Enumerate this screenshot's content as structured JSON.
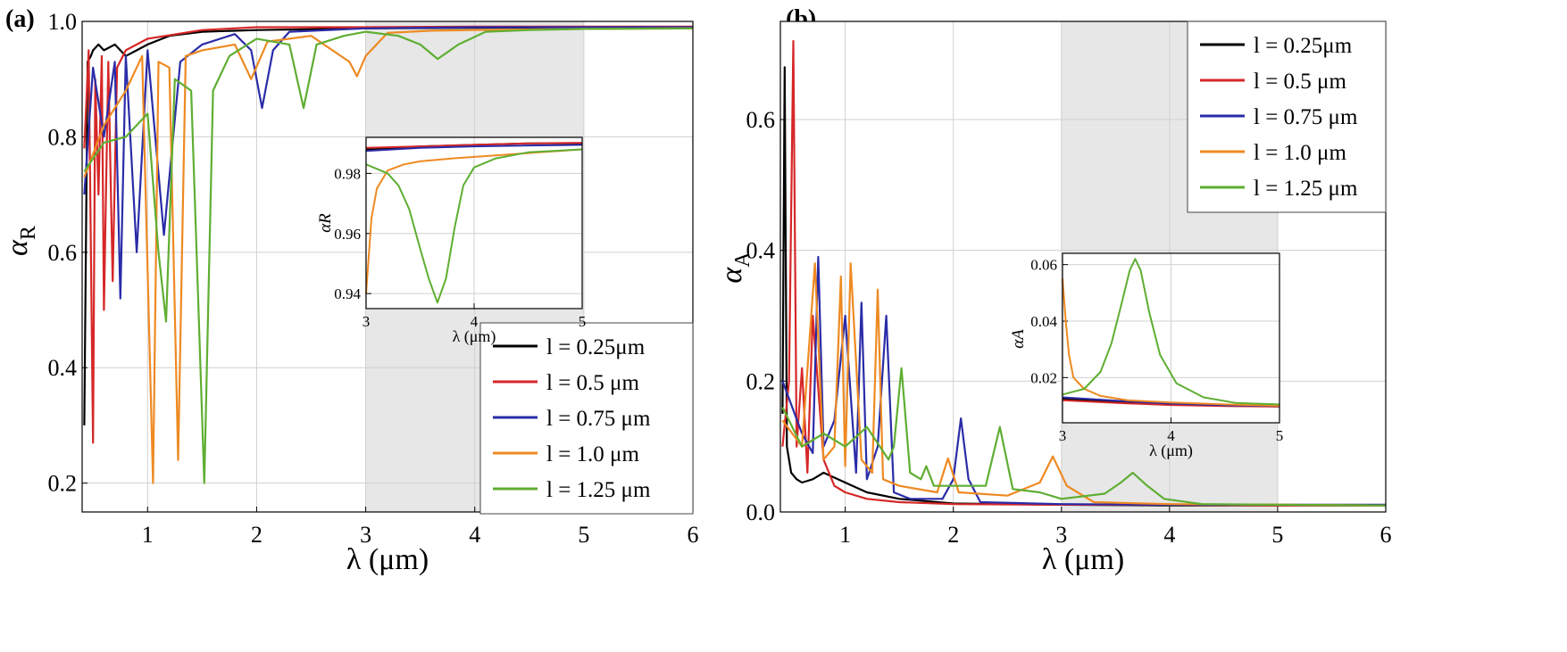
{
  "figure": {
    "panel_a_label": "(a)",
    "panel_b_label": "(b)"
  },
  "colors": {
    "l0_25": "#000000",
    "l0_5": "#d62728",
    "l0_75": "#2a2ca8",
    "l1_0": "#ee8a22",
    "l1_25": "#5fae32",
    "shade": "#e7e7e7"
  },
  "chart_data": [
    {
      "type": "line",
      "panel": "a",
      "xlabel": "λ (μm)",
      "ylabel": "αR",
      "ylabel_main": "α",
      "ylabel_sub": "R",
      "xlim": [
        0.4,
        6.0
      ],
      "ylim": [
        0.15,
        1.0
      ],
      "xticks": [
        "1",
        "2",
        "3",
        "4",
        "5",
        "6"
      ],
      "yticks": [
        "0.2",
        "0.4",
        "0.6",
        "0.8",
        "1.0"
      ],
      "grid": true,
      "shaded_x_range": [
        3,
        5
      ],
      "legend_position": "bottom-right",
      "legend": [
        "l = 0.25μm",
        "l = 0.5 μm",
        "l = 0.75 μm",
        "l = 1.0 μm",
        "l = 1.25 μm"
      ],
      "series": [
        {
          "name": "l = 0.25μm",
          "x": [
            0.42,
            0.45,
            0.48,
            0.5,
            0.55,
            0.6,
            0.7,
            0.8,
            0.9,
            1.0,
            1.2,
            1.5,
            2.0,
            3.0,
            4.0,
            5.0,
            6.0
          ],
          "y": [
            0.3,
            0.93,
            0.94,
            0.95,
            0.96,
            0.95,
            0.96,
            0.94,
            0.95,
            0.96,
            0.975,
            0.982,
            0.985,
            0.988,
            0.989,
            0.99,
            0.99
          ]
        },
        {
          "name": "l = 0.5 μm",
          "x": [
            0.42,
            0.46,
            0.5,
            0.52,
            0.55,
            0.58,
            0.6,
            0.64,
            0.68,
            0.72,
            0.8,
            1.0,
            1.5,
            2.0,
            3.0,
            4.0,
            5.0,
            6.0
          ],
          "y": [
            0.78,
            0.95,
            0.27,
            0.9,
            0.7,
            0.94,
            0.5,
            0.93,
            0.55,
            0.92,
            0.95,
            0.97,
            0.985,
            0.99,
            0.99,
            0.991,
            0.991,
            0.991
          ]
        },
        {
          "name": "l = 0.75 μm",
          "x": [
            0.42,
            0.5,
            0.6,
            0.7,
            0.75,
            0.8,
            0.9,
            1.0,
            1.15,
            1.3,
            1.5,
            1.8,
            1.95,
            2.05,
            2.15,
            2.3,
            3.0,
            4.0,
            5.0,
            6.0
          ],
          "y": [
            0.7,
            0.92,
            0.8,
            0.93,
            0.52,
            0.94,
            0.6,
            0.95,
            0.63,
            0.93,
            0.96,
            0.978,
            0.95,
            0.85,
            0.95,
            0.982,
            0.988,
            0.99,
            0.99,
            0.99
          ]
        },
        {
          "name": "l = 1.0 μm",
          "x": [
            0.42,
            0.6,
            0.8,
            0.95,
            1.05,
            1.1,
            1.2,
            1.28,
            1.35,
            1.5,
            1.8,
            1.95,
            2.1,
            2.5,
            2.85,
            2.92,
            3.0,
            3.2,
            3.6,
            4.0,
            5.0,
            6.0
          ],
          "y": [
            0.73,
            0.82,
            0.88,
            0.94,
            0.2,
            0.93,
            0.92,
            0.24,
            0.94,
            0.95,
            0.96,
            0.9,
            0.965,
            0.975,
            0.93,
            0.905,
            0.94,
            0.98,
            0.984,
            0.985,
            0.987,
            0.988
          ]
        },
        {
          "name": "l = 1.25 μm",
          "x": [
            0.42,
            0.6,
            0.8,
            1.0,
            1.1,
            1.17,
            1.25,
            1.4,
            1.45,
            1.52,
            1.6,
            1.75,
            2.0,
            2.3,
            2.43,
            2.55,
            2.8,
            3.0,
            3.3,
            3.5,
            3.66,
            3.85,
            4.1,
            4.5,
            5.0,
            6.0
          ],
          "y": [
            0.74,
            0.79,
            0.8,
            0.84,
            0.6,
            0.48,
            0.9,
            0.88,
            0.6,
            0.2,
            0.88,
            0.94,
            0.97,
            0.96,
            0.85,
            0.96,
            0.975,
            0.982,
            0.975,
            0.96,
            0.935,
            0.96,
            0.982,
            0.985,
            0.987,
            0.988
          ]
        }
      ],
      "inset": {
        "xlabel": "λ (μm)",
        "ylabel": "αR",
        "xlim": [
          3,
          5
        ],
        "ylim": [
          0.935,
          0.992
        ],
        "xticks": [
          "3",
          "4",
          "5"
        ],
        "yticks": [
          "0.94",
          "0.96",
          "0.98"
        ],
        "series": [
          {
            "name": "l = 0.25μm",
            "x": [
              3.0,
              3.5,
              4.0,
              4.5,
              5.0
            ],
            "y": [
              0.988,
              0.989,
              0.9895,
              0.99,
              0.99
            ]
          },
          {
            "name": "l = 0.5 μm",
            "x": [
              3.0,
              3.5,
              4.0,
              4.5,
              5.0
            ],
            "y": [
              0.9885,
              0.989,
              0.9895,
              0.99,
              0.9902
            ]
          },
          {
            "name": "l = 0.75 μm",
            "x": [
              3.0,
              3.5,
              4.0,
              4.5,
              5.0
            ],
            "y": [
              0.9875,
              0.9885,
              0.989,
              0.9893,
              0.9895
            ]
          },
          {
            "name": "l = 1.0 μm",
            "x": [
              3.0,
              3.05,
              3.1,
              3.2,
              3.35,
              3.5,
              3.8,
              4.2,
              4.6,
              5.0
            ],
            "y": [
              0.94,
              0.965,
              0.975,
              0.981,
              0.983,
              0.984,
              0.985,
              0.986,
              0.987,
              0.988
            ]
          },
          {
            "name": "l = 1.25 μm",
            "x": [
              3.0,
              3.2,
              3.3,
              3.4,
              3.5,
              3.58,
              3.66,
              3.74,
              3.82,
              3.9,
              4.0,
              4.2,
              4.5,
              5.0
            ],
            "y": [
              0.983,
              0.98,
              0.976,
              0.968,
              0.955,
              0.945,
              0.937,
              0.945,
              0.962,
              0.976,
              0.982,
              0.985,
              0.987,
              0.988
            ]
          }
        ]
      }
    },
    {
      "type": "line",
      "panel": "b",
      "xlabel": "λ (μm)",
      "ylabel": "αA",
      "ylabel_main": "α",
      "ylabel_sub": "A",
      "xlim": [
        0.4,
        6.0
      ],
      "ylim": [
        0.0,
        0.75
      ],
      "xticks": [
        "1",
        "2",
        "3",
        "4",
        "5",
        "6"
      ],
      "yticks": [
        "0.0",
        "0.2",
        "0.4",
        "0.6"
      ],
      "grid": true,
      "shaded_x_range": [
        3,
        5
      ],
      "legend_position": "top-right",
      "legend": [
        "l = 0.25μm",
        "l = 0.5 μm",
        "l = 0.75 μm",
        "l = 1.0 μm",
        "l = 1.25 μm"
      ],
      "series": [
        {
          "name": "l = 0.25μm",
          "x": [
            0.42,
            0.44,
            0.46,
            0.5,
            0.55,
            0.6,
            0.7,
            0.8,
            1.0,
            1.2,
            1.5,
            2.0,
            3.0,
            4.0,
            5.0,
            6.0
          ],
          "y": [
            0.15,
            0.68,
            0.1,
            0.06,
            0.05,
            0.045,
            0.05,
            0.06,
            0.045,
            0.03,
            0.02,
            0.013,
            0.011,
            0.01,
            0.01,
            0.01
          ]
        },
        {
          "name": "l = 0.5 μm",
          "x": [
            0.42,
            0.48,
            0.52,
            0.55,
            0.6,
            0.65,
            0.7,
            0.8,
            0.9,
            1.0,
            1.2,
            1.5,
            2.0,
            3.0,
            4.0,
            5.0,
            6.0
          ],
          "y": [
            0.1,
            0.2,
            0.72,
            0.1,
            0.22,
            0.06,
            0.3,
            0.08,
            0.04,
            0.03,
            0.02,
            0.015,
            0.012,
            0.011,
            0.011,
            0.01,
            0.01
          ]
        },
        {
          "name": "l = 0.75 μm",
          "x": [
            0.42,
            0.6,
            0.7,
            0.75,
            0.8,
            0.9,
            1.0,
            1.1,
            1.15,
            1.2,
            1.3,
            1.38,
            1.45,
            1.6,
            1.9,
            2.0,
            2.07,
            2.14,
            2.25,
            3.0,
            4.0,
            5.0,
            6.0
          ],
          "y": [
            0.2,
            0.12,
            0.09,
            0.39,
            0.1,
            0.14,
            0.3,
            0.06,
            0.32,
            0.05,
            0.1,
            0.3,
            0.03,
            0.02,
            0.02,
            0.05,
            0.143,
            0.05,
            0.015,
            0.012,
            0.011,
            0.011,
            0.011
          ]
        },
        {
          "name": "l = 1.0 μm",
          "x": [
            0.42,
            0.6,
            0.72,
            0.8,
            0.9,
            0.96,
            1.0,
            1.05,
            1.15,
            1.25,
            1.3,
            1.35,
            1.5,
            1.85,
            1.95,
            2.05,
            2.5,
            2.8,
            2.92,
            3.05,
            3.3,
            4.0,
            5.0,
            6.0
          ],
          "y": [
            0.14,
            0.1,
            0.38,
            0.08,
            0.1,
            0.36,
            0.07,
            0.38,
            0.08,
            0.06,
            0.34,
            0.05,
            0.04,
            0.03,
            0.082,
            0.03,
            0.025,
            0.045,
            0.085,
            0.04,
            0.015,
            0.012,
            0.011,
            0.01
          ]
        },
        {
          "name": "l = 1.25 μm",
          "x": [
            0.42,
            0.6,
            0.8,
            1.0,
            1.2,
            1.4,
            1.45,
            1.52,
            1.6,
            1.7,
            1.75,
            1.82,
            2.0,
            2.3,
            2.43,
            2.55,
            2.8,
            3.0,
            3.4,
            3.55,
            3.66,
            3.78,
            3.95,
            4.3,
            5.0,
            6.0
          ],
          "y": [
            0.16,
            0.1,
            0.12,
            0.1,
            0.13,
            0.08,
            0.1,
            0.22,
            0.06,
            0.05,
            0.07,
            0.04,
            0.04,
            0.04,
            0.13,
            0.035,
            0.03,
            0.02,
            0.028,
            0.045,
            0.06,
            0.042,
            0.02,
            0.012,
            0.011,
            0.01
          ]
        }
      ],
      "inset": {
        "xlabel": "λ (μm)",
        "ylabel": "αA",
        "xlim": [
          3,
          5
        ],
        "ylim": [
          0.004,
          0.064
        ],
        "xticks": [
          "3",
          "4",
          "5"
        ],
        "yticks": [
          "0.02",
          "0.04",
          "0.06"
        ],
        "series": [
          {
            "name": "l = 0.25μm",
            "x": [
              3.0,
              3.5,
              4.0,
              4.5,
              5.0
            ],
            "y": [
              0.0125,
              0.0115,
              0.0105,
              0.01,
              0.0098
            ]
          },
          {
            "name": "l = 0.5 μm",
            "x": [
              3.0,
              3.5,
              4.0,
              4.5,
              5.0
            ],
            "y": [
              0.012,
              0.011,
              0.0103,
              0.0099,
              0.0097
            ]
          },
          {
            "name": "l = 0.75 μm",
            "x": [
              3.0,
              3.5,
              4.0,
              4.5,
              5.0
            ],
            "y": [
              0.013,
              0.0118,
              0.0108,
              0.0102,
              0.0099
            ]
          },
          {
            "name": "l = 1.0 μm",
            "x": [
              3.0,
              3.03,
              3.06,
              3.1,
              3.2,
              3.35,
              3.6,
              4.0,
              4.5,
              5.0
            ],
            "y": [
              0.055,
              0.04,
              0.028,
              0.02,
              0.016,
              0.0135,
              0.012,
              0.0112,
              0.0105,
              0.01
            ]
          },
          {
            "name": "l = 1.25 μm",
            "x": [
              3.0,
              3.2,
              3.35,
              3.45,
              3.55,
              3.62,
              3.67,
              3.72,
              3.8,
              3.9,
              4.05,
              4.3,
              4.6,
              5.0
            ],
            "y": [
              0.014,
              0.016,
              0.022,
              0.032,
              0.047,
              0.058,
              0.062,
              0.058,
              0.043,
              0.028,
              0.018,
              0.013,
              0.011,
              0.0105
            ]
          }
        ]
      }
    }
  ]
}
